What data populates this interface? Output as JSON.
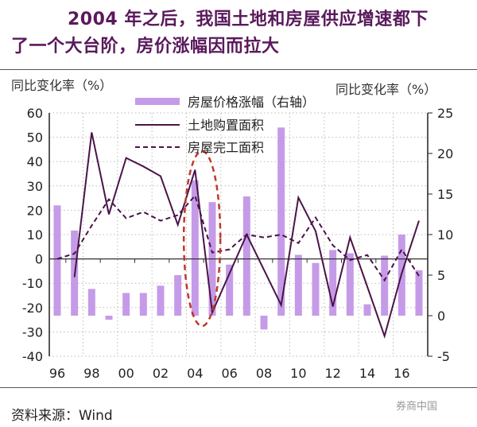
{
  "title": {
    "line1": "2004 年之后，我国土地和房屋供应增速都下",
    "line2": "了一个大台阶，房价涨幅因而拉大"
  },
  "source": "资料来源：Wind",
  "watermark": "券商中国",
  "colors": {
    "title": "#5a1a5c",
    "bar": "#c59be8",
    "land": "#4a1448",
    "completion": "#4a1448",
    "highlight": "#c0392b"
  },
  "chart_data": {
    "type": "bar+line",
    "x": [
      "96",
      "97",
      "98",
      "99",
      "00",
      "01",
      "02",
      "03",
      "04",
      "05",
      "06",
      "07",
      "08",
      "09",
      "10",
      "11",
      "12",
      "13",
      "14",
      "15",
      "16",
      "17"
    ],
    "xtick_labels": [
      "96",
      "98",
      "00",
      "02",
      "04",
      "06",
      "08",
      "10",
      "12",
      "14",
      "16"
    ],
    "left_axis": {
      "label": "同比变化率（%）",
      "range": [
        -40,
        60
      ],
      "ticks": [
        60,
        50,
        40,
        30,
        20,
        10,
        0,
        -10,
        -20,
        -30,
        -40
      ]
    },
    "right_axis": {
      "label": "同比变化率（%）",
      "range": [
        -5,
        25
      ],
      "ticks": [
        25,
        20,
        15,
        10,
        5,
        0,
        -5
      ]
    },
    "series": [
      {
        "name": "房屋价格涨幅（右轴）",
        "type": "bar",
        "axis": "right",
        "values": [
          13.6,
          10.5,
          3.3,
          -0.5,
          2.8,
          2.8,
          3.7,
          5.0,
          16.7,
          14.0,
          6.3,
          14.7,
          -1.7,
          23.2,
          7.5,
          6.5,
          8.1,
          7.7,
          1.4,
          7.4,
          10.0,
          5.6
        ]
      },
      {
        "name": "土地购置面积",
        "type": "line",
        "axis": "left",
        "values": [
          null,
          -7.5,
          52,
          18.3,
          41.5,
          38,
          34,
          14,
          36.6,
          -22,
          -6,
          10,
          -4.5,
          -19,
          25.2,
          11.4,
          -19.6,
          8.8,
          -11.4,
          -31.7,
          -5.9,
          15.7
        ]
      },
      {
        "name": "房屋完工面积",
        "type": "line-dashed",
        "axis": "left",
        "values": [
          0,
          2.2,
          13.7,
          24.5,
          16.7,
          19.3,
          15.7,
          18,
          26,
          2.6,
          3.9,
          10,
          8.8,
          10,
          6.5,
          17,
          5.6,
          -0.5,
          1.6,
          -8.8,
          3.9,
          -7
        ]
      }
    ],
    "highlight": {
      "type": "ellipse",
      "around": [
        "04",
        "05"
      ]
    },
    "grid": true,
    "legend": "top-center"
  }
}
